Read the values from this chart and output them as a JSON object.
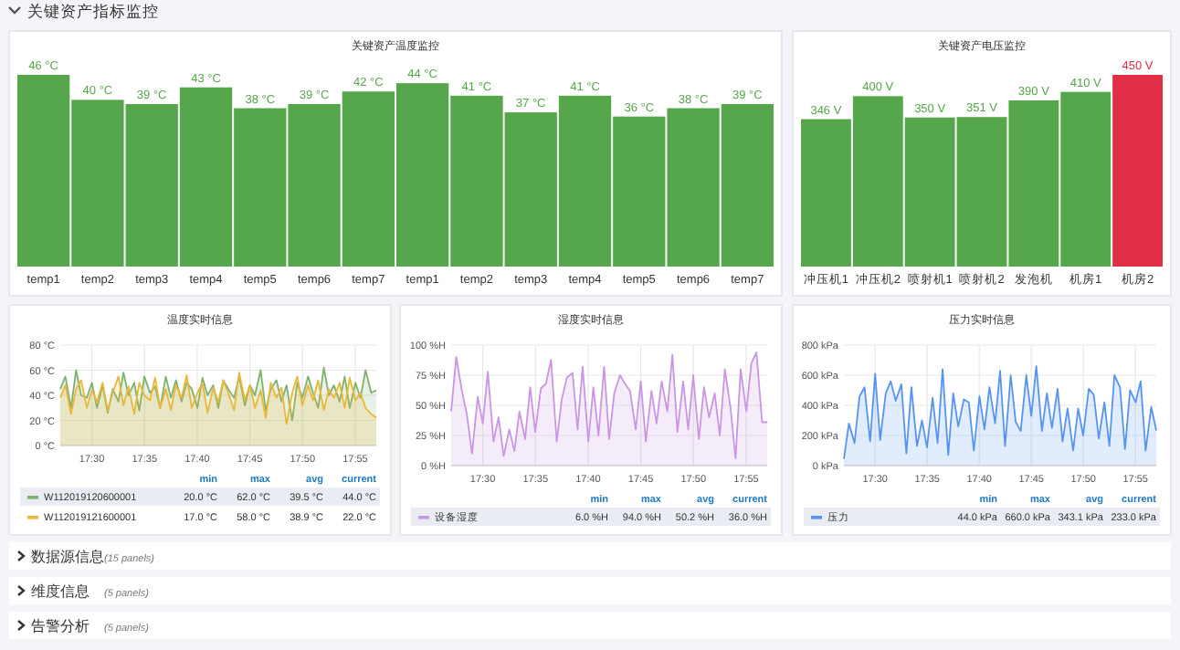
{
  "chart_data": [
    {
      "type": "other",
      "title": "关键资产指标监控"
    },
    {
      "type": "bar",
      "title": "关键资产温度监控",
      "categories": [
        "temp1",
        "temp2",
        "temp3",
        "temp4",
        "temp5",
        "temp6",
        "temp7",
        "temp1",
        "temp2",
        "temp3",
        "temp4",
        "temp5",
        "temp6",
        "temp7"
      ],
      "values": [
        46,
        40,
        39,
        43,
        38,
        39,
        42,
        44,
        41,
        37,
        41,
        36,
        38,
        39
      ],
      "value_labels": [
        "46 °C",
        "40 °C",
        "39 °C",
        "43 °C",
        "38 °C",
        "39 °C",
        "42 °C",
        "44 °C",
        "41 °C",
        "37 °C",
        "41 °C",
        "36 °C",
        "38 °C",
        "39 °C"
      ],
      "colors": [
        "#56a64b",
        "#56a64b",
        "#56a64b",
        "#56a64b",
        "#56a64b",
        "#56a64b",
        "#56a64b",
        "#56a64b",
        "#56a64b",
        "#56a64b",
        "#56a64b",
        "#56a64b",
        "#56a64b",
        "#56a64b"
      ]
    },
    {
      "type": "bar",
      "title": "关键资产电压监控",
      "categories": [
        "冲压机1",
        "冲压机2",
        "喷射机1",
        "喷射机2",
        "发泡机",
        "机房1",
        "机房2"
      ],
      "values": [
        346,
        400,
        350,
        351,
        390,
        410,
        450
      ],
      "value_labels": [
        "346 V",
        "400 V",
        "350 V",
        "351 V",
        "390 V",
        "410 V",
        "450 V"
      ],
      "colors": [
        "#56a64b",
        "#56a64b",
        "#56a64b",
        "#56a64b",
        "#56a64b",
        "#56a64b",
        "#e02f44"
      ]
    },
    {
      "type": "area",
      "title": "温度实时信息",
      "grid": true,
      "legend": "bottom",
      "xlim": [
        17.45,
        17.95
      ],
      "ylim": [
        0,
        80
      ],
      "xticks": [
        {
          "value": 17.5,
          "label": "17:30"
        },
        {
          "value": 17.5833,
          "label": "17:35"
        },
        {
          "value": 17.6667,
          "label": "17:40"
        },
        {
          "value": 17.75,
          "label": "17:45"
        },
        {
          "value": 17.8333,
          "label": "17:50"
        },
        {
          "value": 17.9167,
          "label": "17:55"
        }
      ],
      "yticks": [
        {
          "value": 0,
          "label": "0 °C"
        },
        {
          "value": 20,
          "label": "20 °C"
        },
        {
          "value": 40,
          "label": "40 °C"
        },
        {
          "value": 60,
          "label": "60 °C"
        },
        {
          "value": 80,
          "label": "80 °C"
        }
      ],
      "x": [
        17.45,
        17.458,
        17.467,
        17.475,
        17.483,
        17.492,
        17.5,
        17.508,
        17.517,
        17.525,
        17.533,
        17.542,
        17.55,
        17.558,
        17.567,
        17.575,
        17.583,
        17.592,
        17.6,
        17.608,
        17.617,
        17.625,
        17.633,
        17.642,
        17.65,
        17.658,
        17.667,
        17.675,
        17.683,
        17.692,
        17.7,
        17.708,
        17.717,
        17.725,
        17.733,
        17.742,
        17.75,
        17.758,
        17.767,
        17.775,
        17.783,
        17.792,
        17.8,
        17.808,
        17.817,
        17.825,
        17.833,
        17.842,
        17.85,
        17.858,
        17.867,
        17.875,
        17.883,
        17.892,
        17.9,
        17.908,
        17.917,
        17.925,
        17.933,
        17.942,
        17.95
      ],
      "series": [
        {
          "name": "W112019120600001",
          "color": "#7eb26d",
          "values": [
            45,
            55,
            30,
            60,
            40,
            38,
            50,
            30,
            48,
            26,
            45,
            35,
            58,
            40,
            50,
            28,
            55,
            42,
            47,
            30,
            55,
            38,
            52,
            35,
            50,
            45,
            30,
            54,
            40,
            48,
            30,
            52,
            44,
            38,
            55,
            32,
            48,
            40,
            60,
            28,
            45,
            52,
            35,
            48,
            20,
            50,
            38,
            55,
            42,
            30,
            62,
            40,
            48,
            35,
            55,
            30,
            50,
            38,
            60,
            42,
            44
          ]
        },
        {
          "name": "W112019121600001",
          "color": "#eab839",
          "values": [
            38,
            48,
            25,
            45,
            52,
            30,
            44,
            35,
            50,
            28,
            42,
            55,
            32,
            47,
            25,
            50,
            40,
            36,
            54,
            30,
            45,
            28,
            48,
            38,
            56,
            30,
            42,
            50,
            26,
            46,
            35,
            52,
            40,
            28,
            58,
            36,
            48,
            30,
            44,
            22,
            50,
            38,
            46,
            17,
            42,
            55,
            32,
            48,
            36,
            52,
            28,
            45,
            38,
            50,
            30,
            54,
            36,
            42,
            30,
            25,
            22
          ]
        }
      ],
      "annotations": [
        "min",
        "max",
        "avg",
        "current",
        "20.0 °C",
        "62.0 °C",
        "39.5 °C",
        "44.0 °C",
        "17.0 °C",
        "58.0 °C",
        "38.9 °C",
        "22.0 °C"
      ]
    },
    {
      "type": "area",
      "title": "湿度实时信息",
      "grid": true,
      "legend": "bottom",
      "xlim": [
        17.45,
        17.95
      ],
      "ylim": [
        0,
        100
      ],
      "xticks": [
        {
          "value": 17.5,
          "label": "17:30"
        },
        {
          "value": 17.5833,
          "label": "17:35"
        },
        {
          "value": 17.6667,
          "label": "17:40"
        },
        {
          "value": 17.75,
          "label": "17:45"
        },
        {
          "value": 17.8333,
          "label": "17:50"
        },
        {
          "value": 17.9167,
          "label": "17:55"
        }
      ],
      "yticks": [
        {
          "value": 0,
          "label": "0 %H"
        },
        {
          "value": 25,
          "label": "25 %H"
        },
        {
          "value": 50,
          "label": "50 %H"
        },
        {
          "value": 75,
          "label": "75 %H"
        },
        {
          "value": 100,
          "label": "100 %H"
        }
      ],
      "x": [
        17.45,
        17.458,
        17.467,
        17.475,
        17.483,
        17.492,
        17.5,
        17.508,
        17.517,
        17.525,
        17.533,
        17.542,
        17.55,
        17.558,
        17.567,
        17.575,
        17.583,
        17.592,
        17.6,
        17.608,
        17.617,
        17.625,
        17.633,
        17.642,
        17.65,
        17.658,
        17.667,
        17.675,
        17.683,
        17.692,
        17.7,
        17.708,
        17.717,
        17.725,
        17.733,
        17.742,
        17.75,
        17.758,
        17.767,
        17.775,
        17.783,
        17.792,
        17.8,
        17.808,
        17.817,
        17.825,
        17.833,
        17.842,
        17.85,
        17.858,
        17.867,
        17.875,
        17.883,
        17.892,
        17.9,
        17.908,
        17.917,
        17.925,
        17.933,
        17.942,
        17.95
      ],
      "series": [
        {
          "name": "设备湿度",
          "color": "#ca95e5",
          "values": [
            45,
            90,
            62,
            42,
            10,
            57,
            35,
            78,
            20,
            40,
            8,
            30,
            12,
            45,
            22,
            65,
            28,
            64,
            68,
            88,
            20,
            55,
            73,
            77,
            30,
            82,
            20,
            65,
            25,
            82,
            22,
            60,
            75,
            68,
            62,
            30,
            70,
            20,
            62,
            35,
            70,
            45,
            92,
            28,
            70,
            30,
            75,
            22,
            65,
            40,
            60,
            25,
            80,
            48,
            6,
            80,
            45,
            85,
            94,
            36,
            36
          ]
        }
      ],
      "annotations": [
        "min",
        "max",
        "avg",
        "current",
        "6.0 %H",
        "94.0 %H",
        "50.2 %H",
        "36.0 %H"
      ]
    },
    {
      "type": "area",
      "title": "压力实时信息",
      "grid": true,
      "legend": "bottom",
      "xlim": [
        17.45,
        17.95
      ],
      "ylim": [
        0,
        800
      ],
      "xticks": [
        {
          "value": 17.5,
          "label": "17:30"
        },
        {
          "value": 17.5833,
          "label": "17:35"
        },
        {
          "value": 17.6667,
          "label": "17:40"
        },
        {
          "value": 17.75,
          "label": "17:45"
        },
        {
          "value": 17.8333,
          "label": "17:50"
        },
        {
          "value": 17.9167,
          "label": "17:55"
        }
      ],
      "yticks": [
        {
          "value": 0,
          "label": "0 kPa"
        },
        {
          "value": 200,
          "label": "200 kPa"
        },
        {
          "value": 400,
          "label": "400 kPa"
        },
        {
          "value": 600,
          "label": "600 kPa"
        },
        {
          "value": 800,
          "label": "800 kPa"
        }
      ],
      "x": [
        17.45,
        17.458,
        17.467,
        17.475,
        17.483,
        17.492,
        17.5,
        17.508,
        17.517,
        17.525,
        17.533,
        17.542,
        17.55,
        17.558,
        17.567,
        17.575,
        17.583,
        17.592,
        17.6,
        17.608,
        17.617,
        17.625,
        17.633,
        17.642,
        17.65,
        17.658,
        17.667,
        17.675,
        17.683,
        17.692,
        17.7,
        17.708,
        17.717,
        17.725,
        17.733,
        17.742,
        17.75,
        17.758,
        17.767,
        17.775,
        17.783,
        17.792,
        17.8,
        17.808,
        17.817,
        17.825,
        17.833,
        17.842,
        17.85,
        17.858,
        17.867,
        17.875,
        17.883,
        17.892,
        17.9,
        17.908,
        17.917,
        17.925,
        17.933,
        17.942,
        17.95
      ],
      "series": [
        {
          "name": "压力",
          "color": "#5794f2",
          "values": [
            44,
            280,
            150,
            460,
            520,
            160,
            610,
            170,
            480,
            560,
            430,
            540,
            80,
            520,
            130,
            300,
            120,
            450,
            150,
            640,
            70,
            480,
            260,
            440,
            420,
            100,
            460,
            240,
            520,
            280,
            630,
            130,
            600,
            290,
            230,
            600,
            330,
            660,
            230,
            480,
            250,
            510,
            160,
            380,
            100,
            380,
            200,
            510,
            470,
            180,
            420,
            130,
            600,
            520,
            110,
            500,
            420,
            560,
            100,
            390,
            233
          ]
        }
      ],
      "annotations": [
        "min",
        "max",
        "avg",
        "current",
        "44.0 kPa",
        "660.0 kPa",
        "343.1 kPa",
        "233.0 kPa"
      ]
    },
    {
      "type": "other",
      "annotations": [
        "数据源信息",
        "(15 panels)",
        "维度信息",
        "(5 panels)",
        "告警分析",
        "(5 panels)"
      ]
    }
  ]
}
